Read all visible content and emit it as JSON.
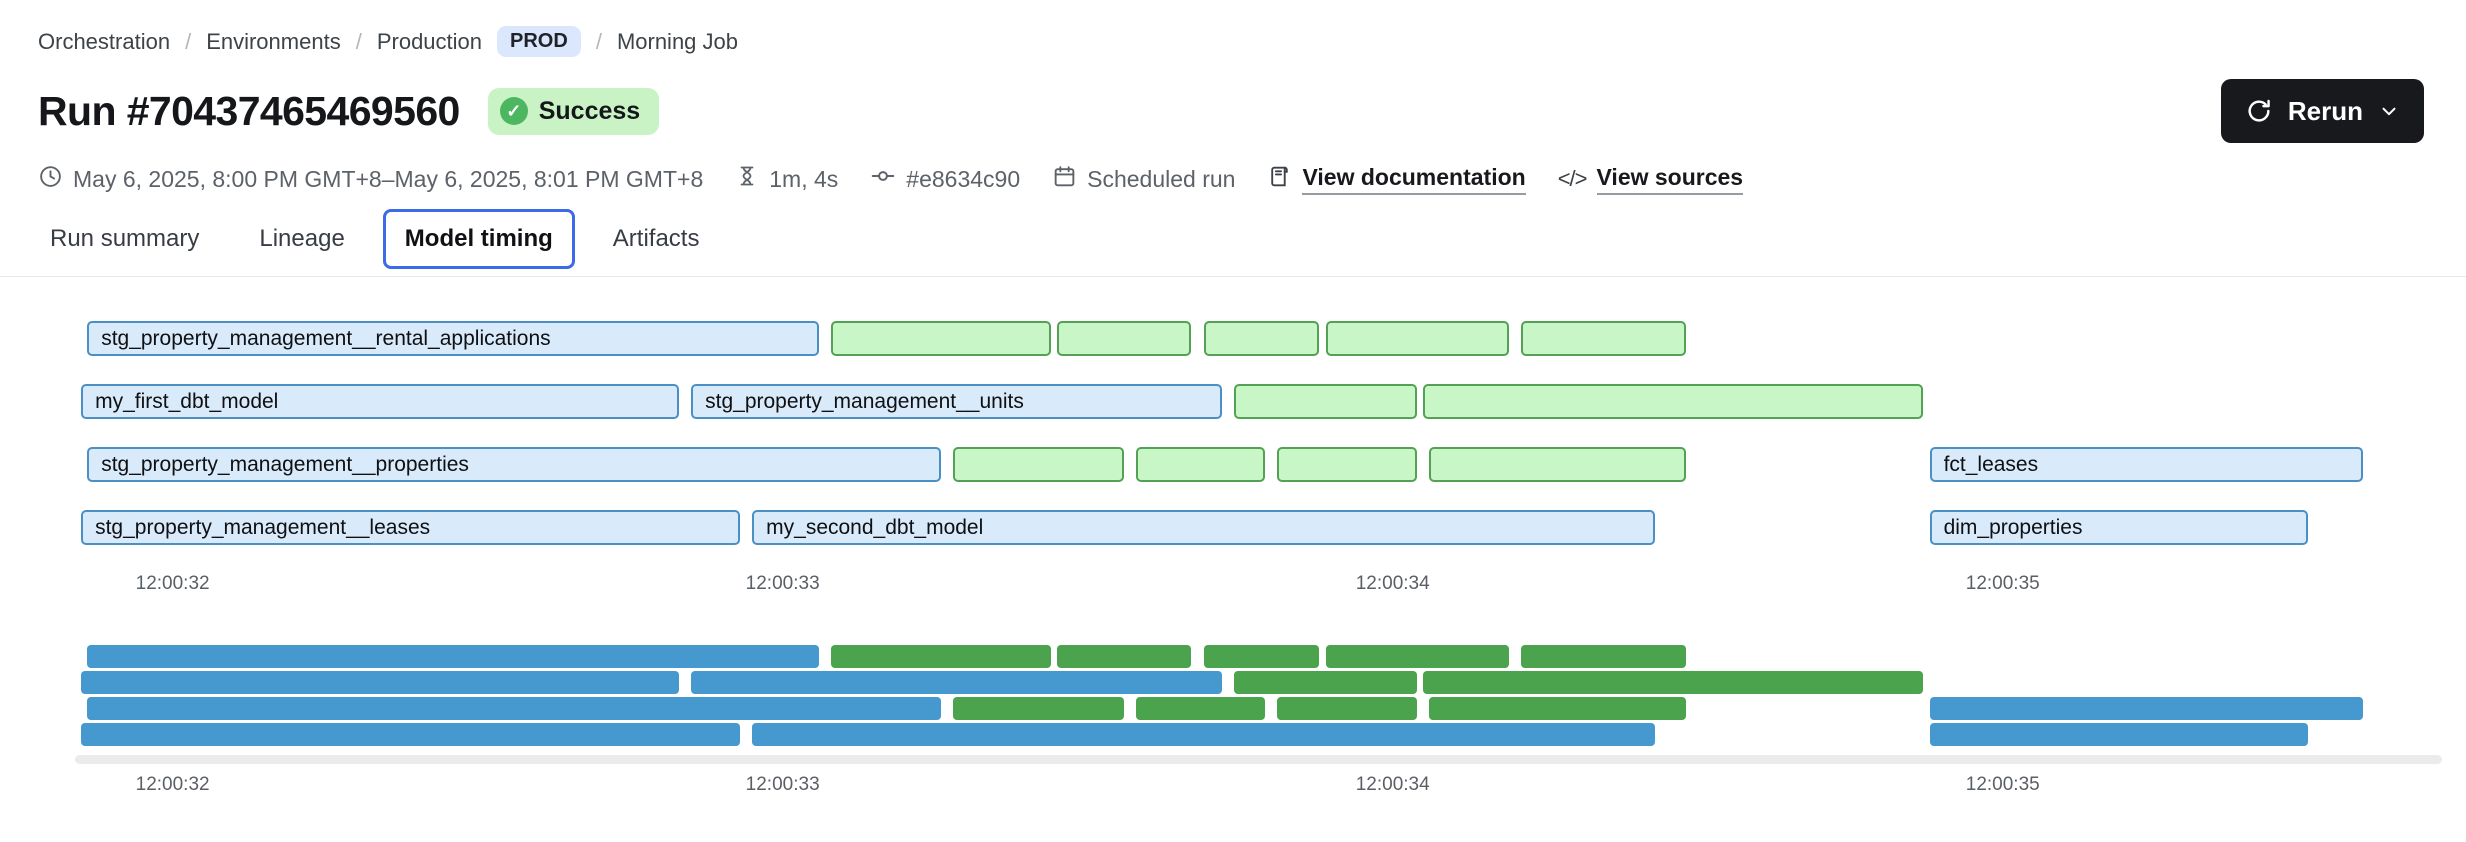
{
  "colors": {
    "prod_badge_bg": "#dbe7fd",
    "success_bg": "#c9f3c5",
    "success_icon": "#4db661",
    "rerun_bg": "#17191d",
    "tab_active_border": "#3b6be8",
    "divider": "#e7e9eb",
    "meta_text": "#5c6268",
    "axis_text": "#5a5f65",
    "link_underline": "#979ca1",
    "bar_blue_fill": "#d9eafa",
    "bar_blue_border": "#4b90c4",
    "bar_green_fill": "#c9f6c6",
    "bar_green_border": "#54a055",
    "mini_blue": "#4599cf",
    "mini_green": "#4ba34d",
    "track": "#ebebeb"
  },
  "breadcrumb": {
    "separator": "/",
    "env_badge": "PROD",
    "items": [
      {
        "label": "Orchestration"
      },
      {
        "label": "Environments"
      },
      {
        "label": "Production"
      },
      {
        "label": "Morning Job"
      }
    ]
  },
  "header": {
    "title": "Run #70437465469560",
    "status": "Success",
    "check_glyph": "✓",
    "rerun_label": "Rerun"
  },
  "meta": {
    "time_range": "May 6, 2025, 8:00 PM GMT+8–May 6, 2025, 8:01 PM GMT+8",
    "duration": "1m, 4s",
    "commit": "#e8634c90",
    "trigger": "Scheduled run",
    "docs_link": "View documentation",
    "sources_link": "View sources",
    "code_glyph": "</>"
  },
  "tabs": [
    {
      "label": "Run summary",
      "active": false
    },
    {
      "label": "Lineage",
      "active": false
    },
    {
      "label": "Model timing",
      "active": true
    },
    {
      "label": "Artifacts",
      "active": false
    }
  ],
  "chart_data": {
    "type": "gantt",
    "title": "Model timing",
    "x_unit": "clock time (HH:MM:SS)",
    "domain": [
      31.84,
      35.72
    ],
    "ticks": [
      {
        "t": 32,
        "label": "12:00:32"
      },
      {
        "t": 33,
        "label": "12:00:33"
      },
      {
        "t": 34,
        "label": "12:00:34"
      },
      {
        "t": 35,
        "label": "12:00:35"
      }
    ],
    "rows": [
      [
        {
          "label": "stg_property_management__rental_applications",
          "kind": "blue",
          "start": 31.86,
          "end": 33.06
        },
        {
          "label": "",
          "kind": "green",
          "start": 33.08,
          "end": 33.44
        },
        {
          "label": "",
          "kind": "green",
          "start": 33.45,
          "end": 33.67
        },
        {
          "label": "",
          "kind": "green",
          "start": 33.69,
          "end": 33.88
        },
        {
          "label": "",
          "kind": "green",
          "start": 33.89,
          "end": 34.19
        },
        {
          "label": "",
          "kind": "green",
          "start": 34.21,
          "end": 34.48
        }
      ],
      [
        {
          "label": "my_first_dbt_model",
          "kind": "blue",
          "start": 31.85,
          "end": 32.83
        },
        {
          "label": "stg_property_management__units",
          "kind": "blue",
          "start": 32.85,
          "end": 33.72
        },
        {
          "label": "",
          "kind": "green",
          "start": 33.74,
          "end": 34.04
        },
        {
          "label": "",
          "kind": "green",
          "start": 34.05,
          "end": 34.87
        }
      ],
      [
        {
          "label": "stg_property_management__properties",
          "kind": "blue",
          "start": 31.86,
          "end": 33.26
        },
        {
          "label": "",
          "kind": "green",
          "start": 33.28,
          "end": 33.56
        },
        {
          "label": "",
          "kind": "green",
          "start": 33.58,
          "end": 33.79
        },
        {
          "label": "",
          "kind": "green",
          "start": 33.81,
          "end": 34.04
        },
        {
          "label": "",
          "kind": "green",
          "start": 34.06,
          "end": 34.48
        },
        {
          "label": "fct_leases",
          "kind": "blue",
          "start": 34.88,
          "end": 35.59
        }
      ],
      [
        {
          "label": "stg_property_management__leases",
          "kind": "blue",
          "start": 31.85,
          "end": 32.93
        },
        {
          "label": "my_second_dbt_model",
          "kind": "blue",
          "start": 32.95,
          "end": 34.43
        },
        {
          "label": "dim_properties",
          "kind": "blue",
          "start": 34.88,
          "end": 35.5
        }
      ]
    ],
    "legend_note": "blue = labeled model bar, green = unlabeled step bar; minimap repeats the same bars in solid colors"
  }
}
